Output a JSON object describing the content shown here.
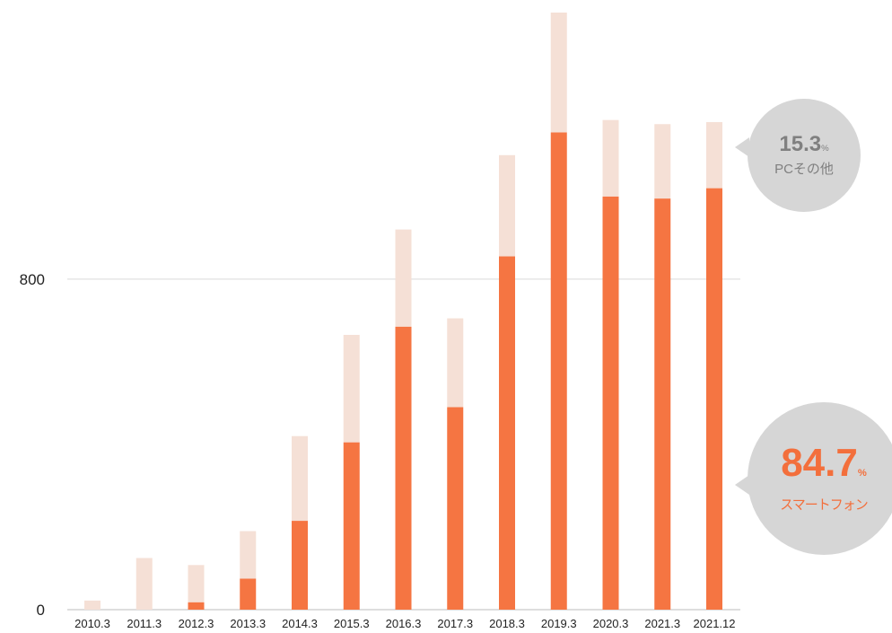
{
  "chart_data": {
    "type": "bar",
    "stacked": true,
    "categories": [
      "2010.3",
      "2011.3",
      "2012.3",
      "2013.3",
      "2014.3",
      "2015.3",
      "2016.3",
      "2017.3",
      "2018.3",
      "2019.3",
      "2020.3",
      "2021.3",
      "2021.12"
    ],
    "series": [
      {
        "name": "スマートフォン",
        "color": "#f57542",
        "values": [
          0,
          0,
          18,
          75,
          215,
          405,
          685,
          490,
          855,
          1155,
          1000,
          995,
          1020
        ]
      },
      {
        "name": "PCその他",
        "color": "#f5e0d6",
        "values": [
          22,
          125,
          90,
          115,
          205,
          260,
          235,
          215,
          245,
          290,
          185,
          180,
          160
        ]
      }
    ],
    "y_ticks": [
      "0",
      "800"
    ],
    "y_tick_values": [
      0,
      800
    ],
    "ylim": [
      0,
      1445
    ],
    "grid": true,
    "legend_position": "right"
  },
  "callouts": {
    "pc": {
      "value": "15.3",
      "unit": "%",
      "label": "PCその他"
    },
    "smartphone": {
      "value": "84.7",
      "unit": "%",
      "label": "スマートフォン"
    }
  }
}
